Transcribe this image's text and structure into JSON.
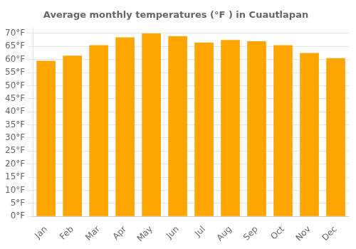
{
  "chart_data": {
    "type": "bar",
    "title": "Average monthly temperatures (°F ) in Cuautlapan",
    "categories": [
      "Jan",
      "Feb",
      "Mar",
      "Apr",
      "May",
      "Jun",
      "Jul",
      "Aug",
      "Sep",
      "Oct",
      "Nov",
      "Dec"
    ],
    "values": [
      59.5,
      61.5,
      65.5,
      68.5,
      70.0,
      69.0,
      66.5,
      67.5,
      67.0,
      65.5,
      62.5,
      60.5
    ],
    "color": "#FFA500",
    "ylim": [
      0,
      72
    ],
    "yticks": [
      {
        "value": 0,
        "label": "0°F"
      },
      {
        "value": 5,
        "label": "5°F"
      },
      {
        "value": 10,
        "label": "10°F"
      },
      {
        "value": 15,
        "label": "15°F"
      },
      {
        "value": 20,
        "label": "20°F"
      },
      {
        "value": 25,
        "label": "25°F"
      },
      {
        "value": 30,
        "label": "30°F"
      },
      {
        "value": 35,
        "label": "35°F"
      },
      {
        "value": 40,
        "label": "40°F"
      },
      {
        "value": 45,
        "label": "45°F"
      },
      {
        "value": 50,
        "label": "50°F"
      },
      {
        "value": 55,
        "label": "55°F"
      },
      {
        "value": 60,
        "label": "60°F"
      },
      {
        "value": 65,
        "label": "65°F"
      },
      {
        "value": 70,
        "label": "70°F"
      }
    ],
    "grid": true
  }
}
